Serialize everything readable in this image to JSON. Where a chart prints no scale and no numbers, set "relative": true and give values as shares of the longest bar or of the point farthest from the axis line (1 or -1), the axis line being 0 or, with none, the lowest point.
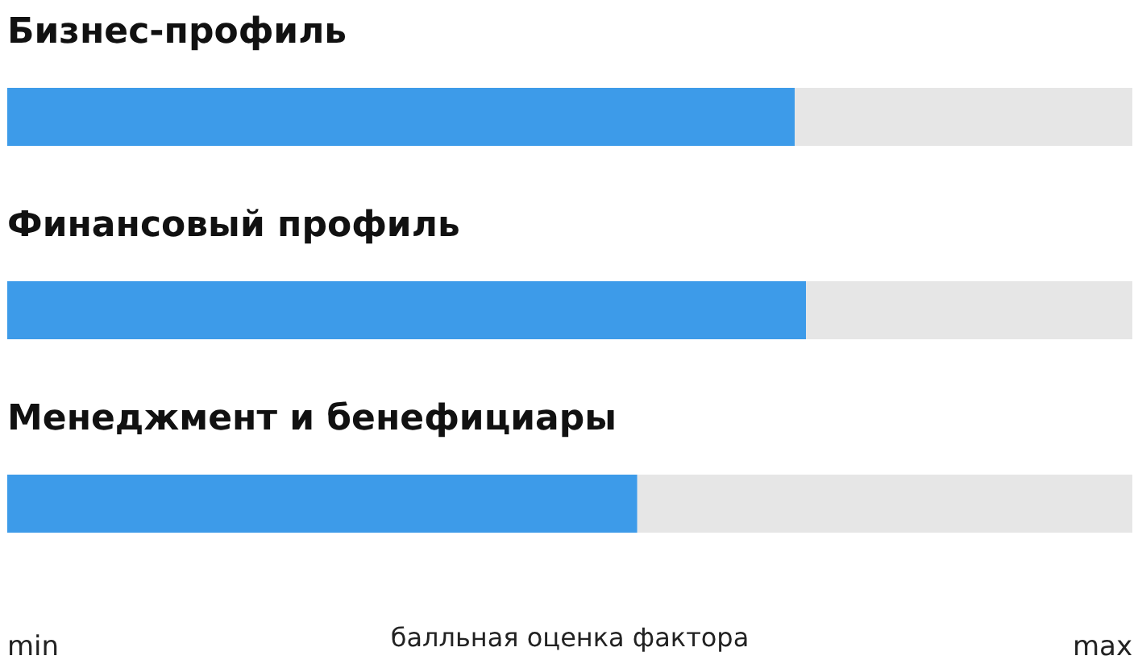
{
  "chart_data": {
    "type": "bar",
    "orientation": "horizontal",
    "stacked": true,
    "relative": true,
    "categories": [
      "Бизнес-профиль",
      "Финансовый профиль",
      "Менеджмент и бенефициары"
    ],
    "series": [
      {
        "color": "#3d9be9",
        "values": [
          0.7,
          0.71,
          0.56
        ]
      },
      {
        "color": "#e6e6e6",
        "values": [
          0.3,
          0.29,
          0.44
        ]
      }
    ],
    "xlabel": "балльная оценка фактора",
    "annotations": [
      "min",
      "max"
    ]
  }
}
